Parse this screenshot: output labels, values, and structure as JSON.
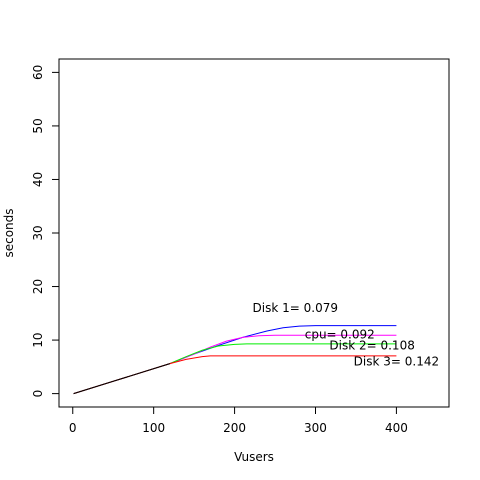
{
  "chart_data": {
    "type": "line",
    "title": "",
    "xlabel": "Vusers",
    "ylabel": "seconds",
    "xlim": [
      -17,
      465
    ],
    "ylim": [
      -2.5,
      62.5
    ],
    "x_ticks": [
      "0",
      "100",
      "200",
      "300",
      "400"
    ],
    "x_tick_values": [
      0,
      100,
      200,
      300,
      400
    ],
    "y_ticks": [
      "0",
      "10",
      "20",
      "30",
      "40",
      "50",
      "60"
    ],
    "y_tick_values": [
      0,
      10,
      20,
      30,
      40,
      50,
      60
    ],
    "grid": false,
    "series": [
      {
        "name": "Disk 1= 0.079",
        "color": "#0000ff",
        "label_at": [
          275,
          16
        ],
        "points": [
          [
            1,
            0
          ],
          [
            120,
            5.6
          ],
          [
            150,
            7.4
          ],
          [
            180,
            9.0
          ],
          [
            210,
            10.5
          ],
          [
            240,
            11.7
          ],
          [
            260,
            12.3
          ],
          [
            280,
            12.6
          ],
          [
            300,
            12.7
          ],
          [
            400,
            12.7
          ]
        ]
      },
      {
        "name": "cpu= 0.092",
        "color": "#ff00ff",
        "label_at": [
          330,
          11
        ],
        "points": [
          [
            1,
            0
          ],
          [
            120,
            5.6
          ],
          [
            150,
            7.4
          ],
          [
            170,
            8.7
          ],
          [
            190,
            9.8
          ],
          [
            210,
            10.5
          ],
          [
            230,
            10.8
          ],
          [
            250,
            10.9
          ],
          [
            400,
            10.9
          ]
        ]
      },
      {
        "name": "Disk 2= 0.108",
        "color": "#00ee00",
        "label_at": [
          370,
          9
        ],
        "points": [
          [
            1,
            0
          ],
          [
            120,
            5.6
          ],
          [
            140,
            6.9
          ],
          [
            160,
            8.1
          ],
          [
            180,
            8.9
          ],
          [
            200,
            9.2
          ],
          [
            215,
            9.3
          ],
          [
            400,
            9.3
          ]
        ]
      },
      {
        "name": "Disk 3= 0.142",
        "color": "#ff0000",
        "label_at": [
          400,
          6
        ],
        "points": [
          [
            1,
            0
          ],
          [
            120,
            5.6
          ],
          [
            140,
            6.4
          ],
          [
            160,
            6.9
          ],
          [
            170,
            7.05
          ],
          [
            400,
            7.05
          ]
        ]
      },
      {
        "name": "",
        "color": "#000000",
        "points": [
          [
            1,
            0
          ],
          [
            120,
            5.6
          ]
        ]
      }
    ]
  }
}
